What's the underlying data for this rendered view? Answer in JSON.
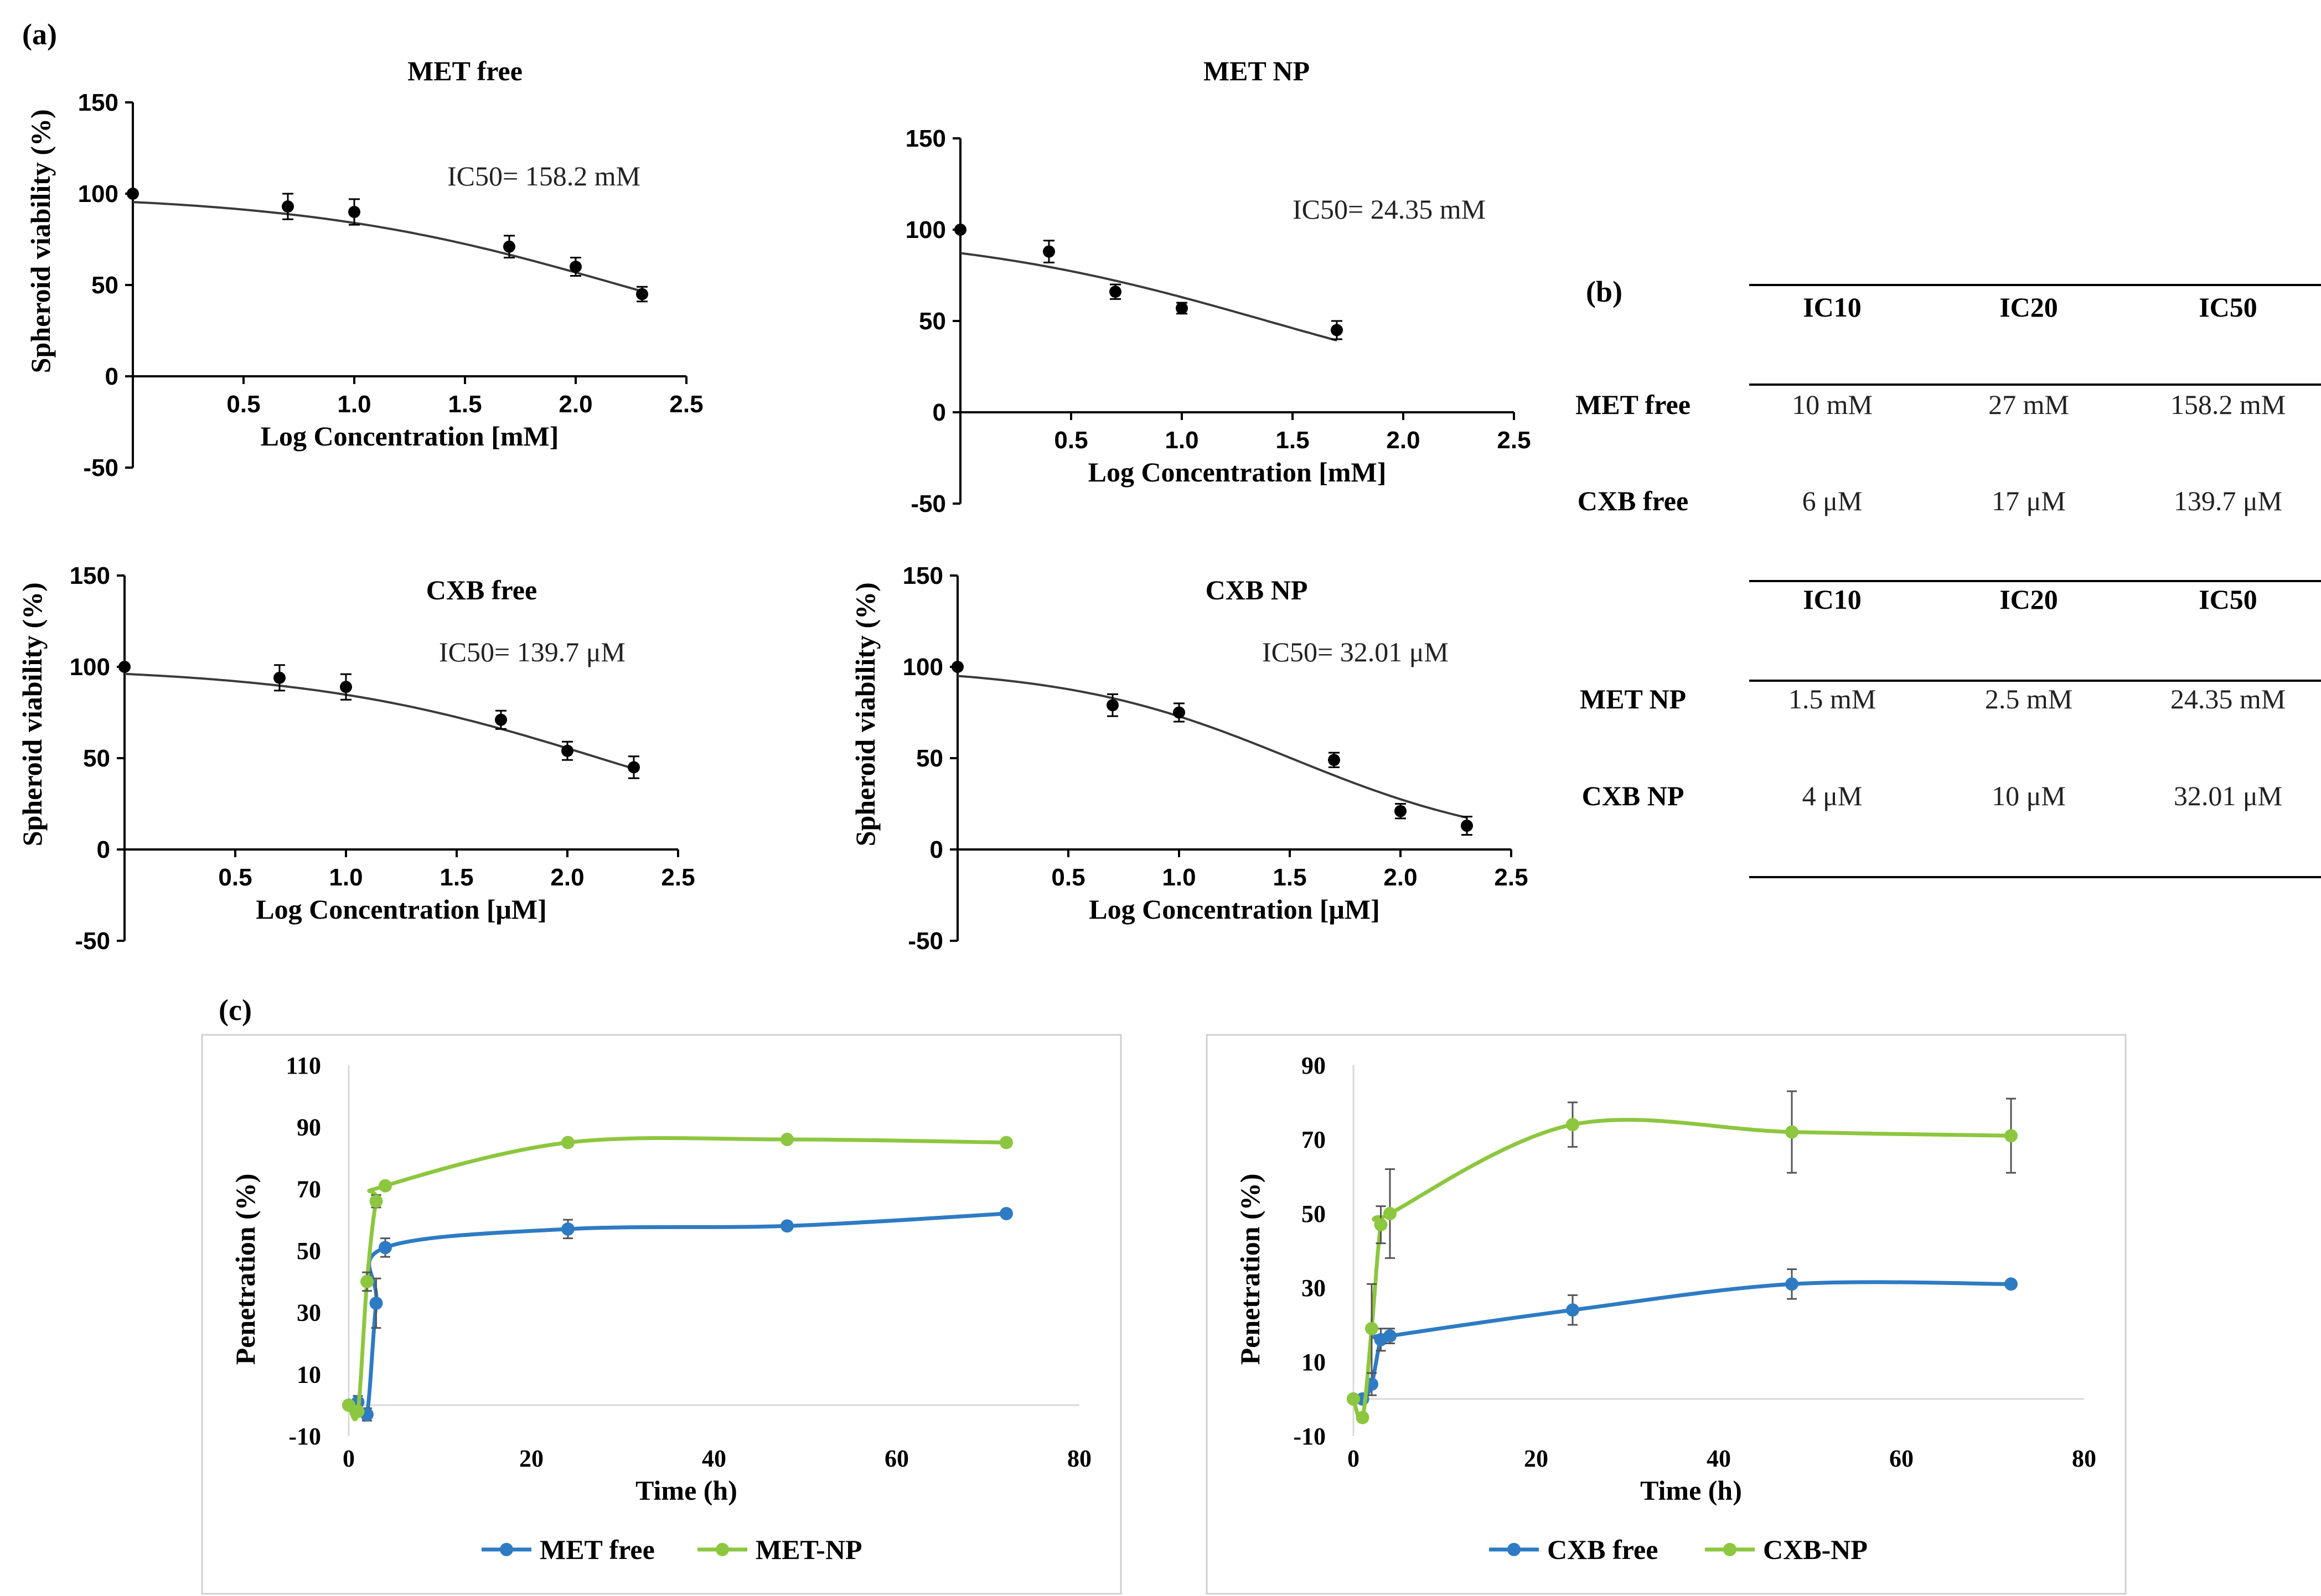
{
  "labels": {
    "a": "(a)",
    "b": "(b)",
    "c": "(c)"
  },
  "colors": {
    "curve": "#3a3a3a",
    "blue": "#2e7bc4",
    "green": "#8dc63f",
    "error": "#555555"
  },
  "chart_data": [
    {
      "type": "scatter",
      "title": "MET free",
      "xlabel": "Log Concentration [mM]",
      "ylabel": "Spheroid viability (%)",
      "annotation": "IC50= 158.2 mM",
      "xlim": [
        0,
        2.5
      ],
      "ylim": [
        -50,
        150
      ],
      "xticks": [
        "0.5",
        "1.0",
        "1.5",
        "2.0",
        "2.5"
      ],
      "yticks": [
        "150",
        "100",
        "50",
        "0",
        "-50"
      ],
      "x": [
        0,
        0.7,
        1.0,
        1.7,
        2.0,
        2.3
      ],
      "y": [
        100,
        93,
        90,
        71,
        60,
        45
      ],
      "error": [
        0,
        7,
        7,
        6,
        5,
        4
      ],
      "fit": {
        "top": 100,
        "bottom": 0,
        "logIC50": 2.2,
        "hill": -0.6,
        "xrange": [
          0,
          2.3
        ]
      }
    },
    {
      "type": "scatter",
      "title": "MET NP",
      "xlabel": "Log Concentration [mM]",
      "ylabel": "",
      "annotation": "IC50= 24.35 mM",
      "xlim": [
        0,
        2.5
      ],
      "ylim": [
        -50,
        150
      ],
      "xticks": [
        "0.5",
        "1.0",
        "1.5",
        "2.0",
        "2.5"
      ],
      "yticks": [
        "150",
        "100",
        "50",
        "0",
        "-50"
      ],
      "x": [
        0,
        0.4,
        0.7,
        1.0,
        1.7
      ],
      "y": [
        100,
        88,
        66,
        57,
        45
      ],
      "error": [
        0,
        6,
        4,
        3,
        5
      ],
      "fit": {
        "top": 100,
        "bottom": 0,
        "logIC50": 1.386,
        "hill": -0.6,
        "xrange": [
          0,
          1.7
        ]
      }
    },
    {
      "type": "scatter",
      "title": "CXB free",
      "xlabel": "Log Concentration [μM]",
      "ylabel": "Spheroid viability (%)",
      "annotation": "IC50= 139.7 μM",
      "xlim": [
        0,
        2.5
      ],
      "ylim": [
        -50,
        150
      ],
      "xticks": [
        "0.5",
        "1.0",
        "1.5",
        "2.0",
        "2.5"
      ],
      "yticks": [
        "150",
        "100",
        "50",
        "0",
        "-50"
      ],
      "x": [
        0,
        0.7,
        1.0,
        1.7,
        2.0,
        2.3
      ],
      "y": [
        100,
        94,
        89,
        71,
        54,
        45
      ],
      "error": [
        0,
        7,
        7,
        5,
        5,
        6
      ],
      "fit": {
        "top": 100,
        "bottom": 0,
        "logIC50": 2.145,
        "hill": -0.65,
        "xrange": [
          0,
          2.3
        ]
      }
    },
    {
      "type": "scatter",
      "title": "CXB NP",
      "xlabel": "Log Concentration [μM]",
      "ylabel": "Spheroid viability (%)",
      "annotation": "IC50= 32.01 μM",
      "xlim": [
        0,
        2.5
      ],
      "ylim": [
        -50,
        150
      ],
      "xticks": [
        "0.5",
        "1.0",
        "1.5",
        "2.0",
        "2.5"
      ],
      "yticks": [
        "150",
        "100",
        "50",
        "0",
        "-50"
      ],
      "x": [
        0,
        0.7,
        1.0,
        1.7,
        2.0,
        2.3
      ],
      "y": [
        100,
        79,
        75,
        49,
        21,
        13
      ],
      "error": [
        0,
        6,
        5,
        4,
        4,
        5
      ],
      "fit": {
        "top": 100,
        "bottom": 0,
        "logIC50": 1.505,
        "hill": -0.85,
        "xrange": [
          0,
          2.3
        ]
      }
    },
    {
      "type": "table",
      "blocks": [
        {
          "headers": [
            "IC10",
            "IC20",
            "IC50"
          ],
          "rows": [
            {
              "label": "MET free",
              "values": [
                "10 mM",
                "27 mM",
                "158.2 mM"
              ]
            },
            {
              "label": "CXB free",
              "values": [
                "6 μM",
                "17 μM",
                "139.7 μM"
              ]
            }
          ]
        },
        {
          "headers": [
            "IC10",
            "IC20",
            "IC50"
          ],
          "rows": [
            {
              "label": "MET NP",
              "values": [
                "1.5 mM",
                "2.5 mM",
                "24.35 mM"
              ]
            },
            {
              "label": "CXB NP",
              "values": [
                "4 μM",
                "10 μM",
                "32.01 μM"
              ]
            }
          ]
        }
      ]
    },
    {
      "type": "line",
      "xlabel": "Time (h)",
      "ylabel": "Penetration (%)",
      "xlim": [
        0,
        80
      ],
      "ylim": [
        -10,
        110
      ],
      "xticks": [
        "0",
        "20",
        "40",
        "60",
        "80"
      ],
      "yticks": [
        "110",
        "90",
        "70",
        "50",
        "30",
        "10",
        "-10"
      ],
      "series": [
        {
          "name": "MET free",
          "x": [
            0,
            1,
            2,
            3,
            4,
            24,
            48,
            72
          ],
          "y": [
            0,
            1,
            -3,
            33,
            51,
            57,
            58,
            62
          ],
          "error": [
            0,
            2,
            2,
            8,
            3,
            3,
            1,
            1
          ]
        },
        {
          "name": "MET-NP",
          "x": [
            0,
            1,
            2,
            3,
            4,
            24,
            48,
            72
          ],
          "y": [
            0,
            -2,
            40,
            66,
            71,
            85,
            86,
            85
          ],
          "error": [
            0,
            1,
            3,
            2,
            1,
            1,
            1,
            1
          ]
        }
      ]
    },
    {
      "type": "line",
      "xlabel": "Time (h)",
      "ylabel": "Penetration (%)",
      "xlim": [
        0,
        80
      ],
      "ylim": [
        -10,
        90
      ],
      "xticks": [
        "0",
        "20",
        "40",
        "60",
        "80"
      ],
      "yticks": [
        "90",
        "70",
        "50",
        "30",
        "10",
        "-10"
      ],
      "series": [
        {
          "name": "CXB free",
          "x": [
            0,
            1,
            2,
            3,
            4,
            24,
            48,
            72
          ],
          "y": [
            0,
            0,
            4,
            16,
            17,
            24,
            31,
            31
          ],
          "error": [
            0,
            1,
            3,
            3,
            2,
            4,
            4,
            1
          ]
        },
        {
          "name": "CXB-NP",
          "x": [
            0,
            1,
            2,
            3,
            4,
            24,
            48,
            72
          ],
          "y": [
            0,
            -5,
            19,
            47,
            50,
            74,
            72,
            71
          ],
          "error": [
            0,
            1,
            12,
            5,
            12,
            6,
            11,
            10
          ]
        }
      ]
    }
  ]
}
